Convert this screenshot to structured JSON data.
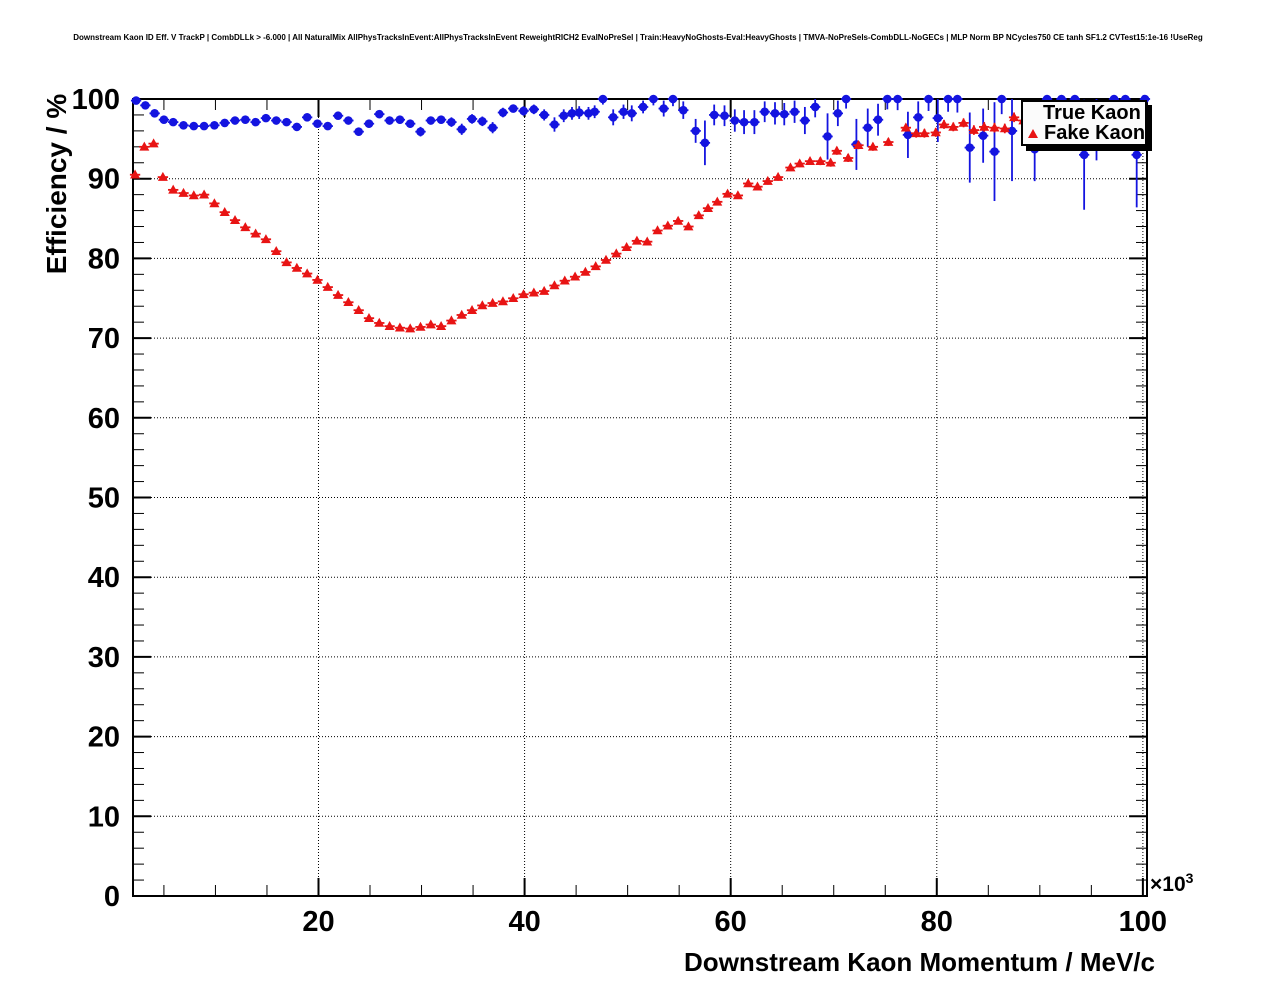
{
  "header_line": "Downstream Kaon ID Eff. V TrackP | CombDLLk > -6.000 | All NaturalMix AllPhysTracksInEvent:AllPhysTracksInEvent ReweightRICH2 EvalNoPreSel | Train:HeavyNoGhosts-Eval:HeavyGhosts | TMVA-NoPreSels-CombDLL-NoGECs | MLP Norm BP NCycles750 CE tanh SF1.2 CVTest15:1e-16 !UseReg",
  "axes": {
    "y_title": "Efficiency / %",
    "x_title": "Downstream Kaon Momentum / MeV/c",
    "x_power_base": "×10",
    "x_power_exponent": "3",
    "y_tick_labels": [
      "0",
      "10",
      "20",
      "30",
      "40",
      "50",
      "60",
      "70",
      "80",
      "90",
      "100"
    ],
    "x_tick_labels": [
      "20",
      "40",
      "60",
      "80",
      "100"
    ]
  },
  "legend": {
    "entries": [
      {
        "label": "True Kaon",
        "marker": "circle",
        "color": "#1414e0"
      },
      {
        "label": "Fake Kaon",
        "marker": "triangle",
        "color": "#e81414"
      }
    ]
  },
  "colors": {
    "true_kaon": "#1414e0",
    "fake_kaon": "#e81414",
    "frame": "#000000",
    "grid": "#000000",
    "legend_bg": "#fbfbfb"
  },
  "chart_data": {
    "type": "scatter",
    "title": "Downstream Kaon ID Eff. V TrackP",
    "xlabel": "Downstream Kaon Momentum / MeV/c",
    "ylabel": "Efficiency / %",
    "x_scale_note": "x values in 10^3 MeV/c",
    "xlim": [
      2.0,
      100.4
    ],
    "ylim": [
      0,
      100
    ],
    "x_major_ticks": [
      20,
      40,
      60,
      80,
      100
    ],
    "x_minor_step": 5,
    "y_major_step": 10,
    "y_minor_step": 2,
    "grid": true,
    "legend_position": "top-right",
    "bin_half_width": 0.5,
    "point_format": [
      "x_GeV",
      "y_percent",
      "y_err_percent"
    ],
    "series": [
      {
        "name": "True Kaon",
        "marker": "circle",
        "color": "#1414e0",
        "points": [
          [
            2.3,
            99.8,
            0.2
          ],
          [
            3.2,
            99.2,
            0.3
          ],
          [
            4.1,
            98.2,
            0.3
          ],
          [
            5.0,
            97.4,
            0.3
          ],
          [
            5.9,
            97.1,
            0.3
          ],
          [
            6.9,
            96.7,
            0.3
          ],
          [
            7.9,
            96.6,
            0.3
          ],
          [
            8.9,
            96.6,
            0.3
          ],
          [
            9.9,
            96.7,
            0.3
          ],
          [
            10.9,
            97.0,
            0.3
          ],
          [
            11.9,
            97.3,
            0.3
          ],
          [
            12.9,
            97.4,
            0.3
          ],
          [
            13.9,
            97.1,
            0.3
          ],
          [
            14.9,
            97.6,
            0.4
          ],
          [
            15.9,
            97.3,
            0.4
          ],
          [
            16.9,
            97.1,
            0.4
          ],
          [
            17.9,
            96.5,
            0.4
          ],
          [
            18.9,
            97.7,
            0.4
          ],
          [
            19.9,
            96.9,
            0.4
          ],
          [
            20.9,
            96.6,
            0.4
          ],
          [
            21.9,
            97.9,
            0.4
          ],
          [
            22.9,
            97.3,
            0.4
          ],
          [
            23.9,
            95.9,
            0.5
          ],
          [
            24.9,
            96.9,
            0.5
          ],
          [
            25.9,
            98.1,
            0.4
          ],
          [
            26.9,
            97.3,
            0.5
          ],
          [
            27.9,
            97.4,
            0.5
          ],
          [
            28.9,
            96.9,
            0.5
          ],
          [
            29.9,
            95.9,
            0.6
          ],
          [
            30.9,
            97.3,
            0.5
          ],
          [
            31.9,
            97.4,
            0.5
          ],
          [
            32.9,
            97.1,
            0.6
          ],
          [
            33.9,
            96.2,
            0.7
          ],
          [
            34.9,
            97.5,
            0.6
          ],
          [
            35.9,
            97.2,
            0.6
          ],
          [
            36.9,
            96.4,
            0.7
          ],
          [
            37.9,
            98.3,
            0.6
          ],
          [
            38.9,
            98.8,
            0.5
          ],
          [
            39.9,
            98.5,
            0.6
          ],
          [
            40.9,
            98.7,
            0.6
          ],
          [
            41.9,
            98.0,
            0.7
          ],
          [
            42.9,
            96.8,
            0.9
          ],
          [
            43.8,
            97.9,
            0.8
          ],
          [
            44.6,
            98.2,
            0.8
          ],
          [
            45.3,
            98.3,
            0.8
          ],
          [
            46.2,
            98.2,
            0.8
          ],
          [
            46.8,
            98.4,
            0.8
          ],
          [
            47.6,
            100,
            0.7
          ],
          [
            48.6,
            97.7,
            1.0
          ],
          [
            49.6,
            98.4,
            0.9
          ],
          [
            50.4,
            98.2,
            1.0
          ],
          [
            51.5,
            99.0,
            0.8
          ],
          [
            52.5,
            100,
            0.8
          ],
          [
            53.5,
            98.8,
            1.0
          ],
          [
            54.4,
            100,
            0.9
          ],
          [
            55.4,
            98.6,
            1.1
          ],
          [
            56.6,
            96.0,
            1.5
          ],
          [
            57.5,
            94.5,
            2.8
          ],
          [
            58.4,
            98.0,
            1.3
          ],
          [
            59.4,
            97.9,
            1.3
          ],
          [
            60.4,
            97.3,
            1.4
          ],
          [
            61.3,
            97.1,
            1.5
          ],
          [
            62.3,
            97.1,
            1.5
          ],
          [
            63.3,
            98.4,
            1.3
          ],
          [
            64.3,
            98.2,
            1.4
          ],
          [
            65.2,
            98.1,
            1.4
          ],
          [
            66.2,
            98.4,
            1.4
          ],
          [
            67.2,
            97.3,
            1.7
          ],
          [
            68.2,
            99.0,
            1.3
          ],
          [
            69.4,
            95.3,
            2.9
          ],
          [
            70.4,
            98.2,
            1.6
          ],
          [
            71.2,
            100,
            1.2
          ],
          [
            72.2,
            94.3,
            3.2
          ],
          [
            73.3,
            96.4,
            2.4
          ],
          [
            74.3,
            97.4,
            2.0
          ],
          [
            75.2,
            100,
            1.3
          ],
          [
            76.2,
            100,
            1.4
          ],
          [
            77.2,
            95.5,
            2.9
          ],
          [
            78.2,
            97.7,
            2.0
          ],
          [
            79.2,
            100,
            1.5
          ],
          [
            80.1,
            97.6,
            3.0
          ],
          [
            81.1,
            100,
            1.6
          ],
          [
            82.0,
            100,
            1.7
          ],
          [
            83.2,
            93.9,
            4.4
          ],
          [
            84.5,
            95.4,
            3.4
          ],
          [
            85.6,
            93.4,
            6.2
          ],
          [
            86.3,
            100,
            1.9
          ],
          [
            87.3,
            96.0,
            6.3
          ],
          [
            89.5,
            93.7,
            4.0
          ],
          [
            90.7,
            100,
            2.2
          ],
          [
            92.1,
            100,
            2.4
          ],
          [
            93.4,
            100,
            2.5
          ],
          [
            94.3,
            93.0,
            6.9
          ],
          [
            95.5,
            96.8,
            4.5
          ],
          [
            97.2,
            100,
            2.8
          ],
          [
            98.3,
            100,
            3.0
          ],
          [
            99.4,
            93.0,
            6.6
          ],
          [
            100.2,
            100,
            3.2
          ]
        ]
      },
      {
        "name": "Fake Kaon",
        "marker": "triangle",
        "color": "#e81414",
        "points": [
          [
            2.2,
            90.5,
            0.3
          ],
          [
            3.1,
            94.0,
            0.25
          ],
          [
            4.0,
            94.4,
            0.25
          ],
          [
            4.9,
            90.2,
            0.25
          ],
          [
            5.9,
            88.6,
            0.25
          ],
          [
            6.9,
            88.2,
            0.25
          ],
          [
            7.9,
            87.9,
            0.25
          ],
          [
            8.9,
            88.0,
            0.25
          ],
          [
            9.9,
            86.9,
            0.25
          ],
          [
            10.9,
            85.8,
            0.25
          ],
          [
            11.9,
            84.8,
            0.25
          ],
          [
            12.9,
            83.9,
            0.25
          ],
          [
            13.9,
            83.1,
            0.25
          ],
          [
            14.9,
            82.4,
            0.25
          ],
          [
            15.9,
            80.9,
            0.25
          ],
          [
            16.9,
            79.5,
            0.25
          ],
          [
            17.9,
            78.8,
            0.25
          ],
          [
            18.9,
            78.1,
            0.25
          ],
          [
            19.9,
            77.3,
            0.25
          ],
          [
            20.9,
            76.4,
            0.25
          ],
          [
            21.9,
            75.4,
            0.25
          ],
          [
            22.9,
            74.5,
            0.25
          ],
          [
            23.9,
            73.5,
            0.3
          ],
          [
            24.9,
            72.5,
            0.3
          ],
          [
            25.9,
            71.9,
            0.3
          ],
          [
            26.9,
            71.5,
            0.3
          ],
          [
            27.9,
            71.3,
            0.3
          ],
          [
            28.9,
            71.2,
            0.3
          ],
          [
            29.9,
            71.4,
            0.3
          ],
          [
            30.9,
            71.7,
            0.3
          ],
          [
            31.9,
            71.5,
            0.3
          ],
          [
            32.9,
            72.2,
            0.3
          ],
          [
            33.9,
            72.9,
            0.3
          ],
          [
            34.9,
            73.5,
            0.3
          ],
          [
            35.9,
            74.1,
            0.3
          ],
          [
            36.9,
            74.4,
            0.3
          ],
          [
            37.9,
            74.6,
            0.3
          ],
          [
            38.9,
            75.0,
            0.3
          ],
          [
            39.9,
            75.5,
            0.3
          ],
          [
            40.9,
            75.7,
            0.3
          ],
          [
            41.9,
            75.9,
            0.3
          ],
          [
            42.9,
            76.6,
            0.3
          ],
          [
            43.9,
            77.2,
            0.3
          ],
          [
            44.9,
            77.7,
            0.3
          ],
          [
            45.9,
            78.3,
            0.3
          ],
          [
            46.9,
            79.0,
            0.35
          ],
          [
            47.9,
            79.8,
            0.35
          ],
          [
            48.9,
            80.6,
            0.35
          ],
          [
            49.9,
            81.4,
            0.35
          ],
          [
            50.9,
            82.2,
            0.35
          ],
          [
            51.9,
            82.1,
            0.35
          ],
          [
            52.9,
            83.5,
            0.35
          ],
          [
            53.9,
            84.1,
            0.4
          ],
          [
            54.9,
            84.7,
            0.4
          ],
          [
            55.9,
            84.0,
            0.4
          ],
          [
            56.9,
            85.4,
            0.4
          ],
          [
            57.8,
            86.3,
            0.4
          ],
          [
            58.7,
            87.1,
            0.4
          ],
          [
            59.7,
            88.1,
            0.4
          ],
          [
            60.7,
            87.9,
            0.4
          ],
          [
            61.7,
            89.4,
            0.4
          ],
          [
            62.6,
            89.0,
            0.4
          ],
          [
            63.6,
            89.7,
            0.45
          ],
          [
            64.6,
            90.2,
            0.45
          ],
          [
            65.8,
            91.4,
            0.45
          ],
          [
            66.7,
            91.9,
            0.45
          ],
          [
            67.7,
            92.2,
            0.45
          ],
          [
            68.7,
            92.2,
            0.5
          ],
          [
            69.7,
            92.0,
            0.5
          ],
          [
            70.3,
            93.5,
            0.5
          ],
          [
            71.4,
            92.6,
            0.5
          ],
          [
            72.4,
            94.2,
            0.5
          ],
          [
            73.8,
            94.0,
            0.5
          ],
          [
            75.3,
            94.6,
            0.5
          ],
          [
            77.0,
            96.4,
            0.5
          ],
          [
            78.0,
            95.7,
            0.55
          ],
          [
            78.8,
            95.7,
            0.55
          ],
          [
            79.9,
            95.8,
            0.55
          ],
          [
            80.7,
            96.8,
            0.55
          ],
          [
            81.6,
            96.5,
            0.55
          ],
          [
            82.6,
            97.0,
            0.55
          ],
          [
            83.6,
            96.1,
            0.6
          ],
          [
            84.6,
            96.5,
            0.6
          ],
          [
            85.6,
            96.4,
            0.6
          ],
          [
            86.6,
            96.3,
            0.6
          ],
          [
            87.5,
            97.7,
            0.6
          ],
          [
            88.4,
            97.3,
            0.6
          ],
          [
            89.4,
            97.4,
            0.6
          ],
          [
            90.5,
            97.6,
            0.65
          ],
          [
            92.0,
            97.8,
            0.65
          ],
          [
            93.5,
            97.9,
            0.7
          ],
          [
            95.0,
            98.0,
            0.7
          ],
          [
            97.0,
            98.2,
            0.75
          ]
        ]
      }
    ]
  }
}
